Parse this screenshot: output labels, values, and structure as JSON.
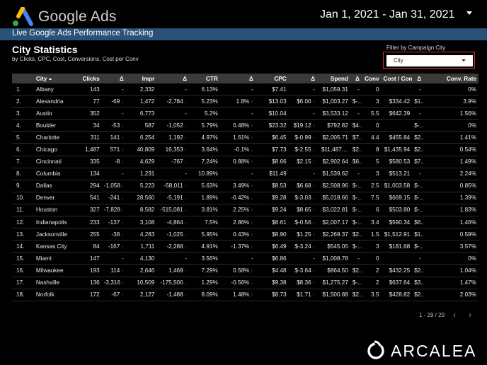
{
  "header": {
    "logo_text": "Google Ads",
    "date_range": "Jan 1, 2021 - Jan 31, 2021"
  },
  "banner": {
    "text": "Live Google Ads Performance Tracking"
  },
  "section": {
    "title": "City Statistics",
    "subtitle": "by Clicks, CPC, Cost, Conversions, Cost per Conv"
  },
  "filter": {
    "label": "Filter by Campaign City",
    "value": "City"
  },
  "table": {
    "columns": [
      "",
      "City",
      "Clicks",
      "Δ",
      "Impr",
      "Δ",
      "CTR",
      "Δ",
      "CPC",
      "Δ",
      "Spend",
      "Δ",
      "Conv",
      "Cost / Conv",
      "Δ",
      "Conv. Rate"
    ],
    "rows": [
      {
        "n": "1.",
        "city": "Albany",
        "clicks": "143",
        "d1": "-",
        "impr": "2,332",
        "d2": "-",
        "ctr": "6.13%",
        "d3": "-",
        "cpc": "$7.41",
        "d4": "-",
        "spend": "$1,059.31",
        "d5": "-",
        "conv": "0",
        "cpc2": "",
        "d6": "-",
        "rate": "0%",
        "a1": "",
        "a2": "",
        "a3": "",
        "a4": "",
        "a5": ""
      },
      {
        "n": "2.",
        "city": "Alexandria",
        "clicks": "77",
        "d1": "-69",
        "impr": "1,472",
        "d2": "-2,784",
        "ctr": "5.23%",
        "d3": "1.8%",
        "cpc": "$13.03",
        "d4": "$6.00",
        "spend": "$1,003.27",
        "d5": "$-...",
        "conv": "3",
        "cpc2": "$334.42",
        "d6": "$1...",
        "rate": "3.9%",
        "a1": "dn",
        "a2": "dn",
        "a3": "up",
        "a4": "up",
        "a5": ""
      },
      {
        "n": "3.",
        "city": "Austin",
        "clicks": "352",
        "d1": "-",
        "impr": "6,773",
        "d2": "-",
        "ctr": "5.2%",
        "d3": "-",
        "cpc": "$10.04",
        "d4": "-",
        "spend": "$3,533.12",
        "d5": "-",
        "conv": "5.5",
        "cpc2": "$642.39",
        "d6": "-",
        "rate": "1.56%",
        "a1": "",
        "a2": "",
        "a3": "",
        "a4": "",
        "a5": ""
      },
      {
        "n": "4.",
        "city": "Boulder",
        "clicks": "34",
        "d1": "-53",
        "impr": "587",
        "d2": "-1,052",
        "ctr": "5.79%",
        "d3": "0.48%",
        "cpc": "$23.32",
        "d4": "$19.12",
        "spend": "$792.82",
        "d5": "$4...",
        "conv": "0",
        "cpc2": "",
        "d6": "$-...",
        "rate": "0%",
        "a1": "dn",
        "a2": "dn",
        "a3": "up",
        "a4": "up",
        "a5": ""
      },
      {
        "n": "5.",
        "city": "Charlotte",
        "clicks": "311",
        "d1": "141",
        "impr": "6,254",
        "d2": "1,192",
        "ctr": "4.97%",
        "d3": "1.61%",
        "cpc": "$6.45",
        "d4": "$-0.99",
        "spend": "$2,005.71",
        "d5": "$7...",
        "conv": "4.4",
        "cpc2": "$455.84",
        "d6": "$2...",
        "rate": "1.41%",
        "a1": "up",
        "a2": "up",
        "a3": "up",
        "a4": "dn",
        "a5": ""
      },
      {
        "n": "6.",
        "city": "Chicago",
        "clicks": "1,487",
        "d1": "571",
        "impr": "40,809",
        "d2": "16,353",
        "ctr": "3.64%",
        "d3": "-0.1%",
        "cpc": "$7.73",
        "d4": "$-2.55",
        "spend": "$11,487....",
        "d5": "$2...",
        "conv": "8",
        "cpc2": "$1,435.94",
        "d6": "$2...",
        "rate": "0.54%",
        "a1": "up",
        "a2": "up",
        "a3": "dn",
        "a4": "dn",
        "a5": ""
      },
      {
        "n": "7.",
        "city": "Cincinnati",
        "clicks": "335",
        "d1": "-8",
        "impr": "4,629",
        "d2": "-767",
        "ctr": "7.24%",
        "d3": "0.88%",
        "cpc": "$8.66",
        "d4": "$2.15",
        "spend": "$2,902.64",
        "d5": "$6...",
        "conv": "5",
        "cpc2": "$580.53",
        "d6": "$7...",
        "rate": "1.49%",
        "a1": "dn",
        "a2": "dn",
        "a3": "up",
        "a4": "up",
        "a5": ""
      },
      {
        "n": "8.",
        "city": "Columbia",
        "clicks": "134",
        "d1": "-",
        "impr": "1,231",
        "d2": "-",
        "ctr": "10.89%",
        "d3": "-",
        "cpc": "$11.49",
        "d4": "-",
        "spend": "$1,539.62",
        "d5": "-",
        "conv": "3",
        "cpc2": "$513.21",
        "d6": "-",
        "rate": "2.24%",
        "a1": "",
        "a2": "",
        "a3": "",
        "a4": "",
        "a5": ""
      },
      {
        "n": "9.",
        "city": "Dallas",
        "clicks": "294",
        "d1": "-1,058",
        "impr": "5,223",
        "d2": "-58,011",
        "ctr": "5.63%",
        "d3": "3.49%",
        "cpc": "$8.53",
        "d4": "$6.68",
        "spend": "$2,508.96",
        "d5": "$-...",
        "conv": "2.5",
        "cpc2": "$1,003.58",
        "d6": "$-...",
        "rate": "0.85%",
        "a1": "dn",
        "a2": "dn",
        "a3": "up",
        "a4": "up",
        "a5": ""
      },
      {
        "n": "10.",
        "city": "Denver",
        "clicks": "541",
        "d1": "-241",
        "impr": "28,560",
        "d2": "-5,191",
        "ctr": "1.89%",
        "d3": "-0.42%",
        "cpc": "$9.28",
        "d4": "$-3.03",
        "spend": "$5,018.66",
        "d5": "$-...",
        "conv": "7.5",
        "cpc2": "$669.15",
        "d6": "$-...",
        "rate": "1.39%",
        "a1": "dn",
        "a2": "dn",
        "a3": "dn",
        "a4": "dn",
        "a5": ""
      },
      {
        "n": "11.",
        "city": "Houston",
        "clicks": "327",
        "d1": "-7,828",
        "impr": "8,582",
        "d2": "-515,081",
        "ctr": "3.81%",
        "d3": "2.25%",
        "cpc": "$9.24",
        "d4": "$8.65",
        "spend": "$3,022.81",
        "d5": "$-...",
        "conv": "6",
        "cpc2": "$503.80",
        "d6": "$-...",
        "rate": "1.83%",
        "a1": "dn",
        "a2": "dn",
        "a3": "up",
        "a4": "up",
        "a5": ""
      },
      {
        "n": "12.",
        "city": "Indianapolis",
        "clicks": "233",
        "d1": "-137",
        "impr": "3,108",
        "d2": "-4,864",
        "ctr": "7.5%",
        "d3": "2.86%",
        "cpc": "$8.61",
        "d4": "$-0.56",
        "spend": "$2,007.17",
        "d5": "$-...",
        "conv": "3.4",
        "cpc2": "$590.34",
        "d6": "$6...",
        "rate": "1.46%",
        "a1": "dn",
        "a2": "dn",
        "a3": "up",
        "a4": "dn",
        "a5": ""
      },
      {
        "n": "13.",
        "city": "Jacksonville",
        "clicks": "255",
        "d1": "-38",
        "impr": "4,283",
        "d2": "-1,025",
        "ctr": "5.95%",
        "d3": "0.43%",
        "cpc": "$8.90",
        "d4": "$1.25",
        "spend": "$2,269.37",
        "d5": "$2...",
        "conv": "1.5",
        "cpc2": "$1,512.91",
        "d6": "$1...",
        "rate": "0.59%",
        "a1": "dn",
        "a2": "dn",
        "a3": "up",
        "a4": "up",
        "a5": ""
      },
      {
        "n": "14.",
        "city": "Kansas City",
        "clicks": "84",
        "d1": "-167",
        "impr": "1,711",
        "d2": "-2,288",
        "ctr": "4.91%",
        "d3": "-1.37%",
        "cpc": "$6.49",
        "d4": "$-3.24",
        "spend": "$545.05",
        "d5": "$-...",
        "conv": "3",
        "cpc2": "$181.68",
        "d6": "$-...",
        "rate": "3.57%",
        "a1": "dn",
        "a2": "dn",
        "a3": "dn",
        "a4": "dn",
        "a5": ""
      },
      {
        "n": "15.",
        "city": "Miami",
        "clicks": "147",
        "d1": "-",
        "impr": "4,130",
        "d2": "-",
        "ctr": "3.56%",
        "d3": "-",
        "cpc": "$6.86",
        "d4": "-",
        "spend": "$1,008.78",
        "d5": "-",
        "conv": "0",
        "cpc2": "",
        "d6": "-",
        "rate": "0%",
        "a1": "",
        "a2": "",
        "a3": "",
        "a4": "",
        "a5": ""
      },
      {
        "n": "16.",
        "city": "Milwaukee",
        "clicks": "193",
        "d1": "114",
        "impr": "2,646",
        "d2": "1,469",
        "ctr": "7.29%",
        "d3": "0.58%",
        "cpc": "$4.48",
        "d4": "$-3.64",
        "spend": "$864.50",
        "d5": "$2...",
        "conv": "2",
        "cpc2": "$432.25",
        "d6": "$2...",
        "rate": "1.04%",
        "a1": "up",
        "a2": "up",
        "a3": "up",
        "a4": "dn",
        "a5": ""
      },
      {
        "n": "17.",
        "city": "Nashville",
        "clicks": "136",
        "d1": "-3,316",
        "impr": "10,509",
        "d2": "-175,500",
        "ctr": "1.29%",
        "d3": "-0.56%",
        "cpc": "$9.38",
        "d4": "$8.36",
        "spend": "$1,275.27",
        "d5": "$-...",
        "conv": "2",
        "cpc2": "$637.64",
        "d6": "$3...",
        "rate": "1.47%",
        "a1": "dn",
        "a2": "dn",
        "a3": "dn",
        "a4": "up",
        "a5": ""
      },
      {
        "n": "18.",
        "city": "Norfolk",
        "clicks": "172",
        "d1": "-67",
        "impr": "2,127",
        "d2": "-1,488",
        "ctr": "8.09%",
        "d3": "1.48%",
        "cpc": "$8.73",
        "d4": "$1.71",
        "spend": "$1,500.88",
        "d5": "$2...",
        "conv": "3.5",
        "cpc2": "$428.82",
        "d6": "$2...",
        "rate": "2.03%",
        "a1": "dn",
        "a2": "dn",
        "a3": "up",
        "a4": "up",
        "a5": ""
      }
    ]
  },
  "pager": {
    "text": "1 - 29 / 29"
  },
  "brand": {
    "text": "ARCALEA"
  },
  "colors": {
    "banner": "#2a5177",
    "down": "#e53935",
    "up": "#43a047",
    "header_row": "#3a3a3a",
    "filter_border": "#d32f2f"
  },
  "icons": [
    "google-ads-logo-icon",
    "caret-down-icon",
    "sort-asc-icon",
    "arrow-down-icon",
    "arrow-up-icon",
    "chevron-left-icon",
    "chevron-right-icon",
    "arcalea-logo-icon"
  ]
}
